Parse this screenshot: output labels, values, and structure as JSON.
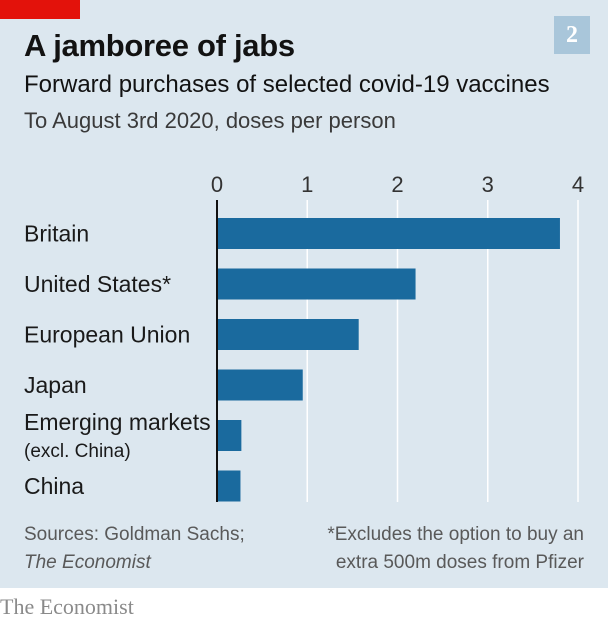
{
  "header": {
    "title": "A jamboree of jabs",
    "badge": "2",
    "subtitle": "Forward purchases of selected covid-19 vaccines",
    "note": "To August 3rd 2020, doses per person"
  },
  "colors": {
    "panel_bg": "#dce7ef",
    "bar": "#1a6a9e",
    "grid": "#ffffff",
    "red_tag": "#e3120b",
    "badge_bg": "#a9c6da"
  },
  "chart_data": {
    "type": "bar",
    "orientation": "horizontal",
    "categories": [
      "Britain",
      "United States*",
      "European Union",
      "Japan",
      "Emerging markets",
      "China"
    ],
    "category_sublabels": [
      "",
      "",
      "",
      "",
      "(excl. China)",
      ""
    ],
    "values": [
      3.8,
      2.2,
      1.57,
      0.95,
      0.27,
      0.26
    ],
    "xlim": [
      0,
      4
    ],
    "xticks": [
      "0",
      "1",
      "2",
      "3",
      "4"
    ],
    "grid": true,
    "xaxis_position": "top"
  },
  "footer": {
    "source_line1": "Sources: Goldman Sachs;",
    "source_line2": "The Economist",
    "footnote_line1": "*Excludes the option to buy an",
    "footnote_line2": "extra 500m doses from Pfizer",
    "brand": "The Economist"
  }
}
